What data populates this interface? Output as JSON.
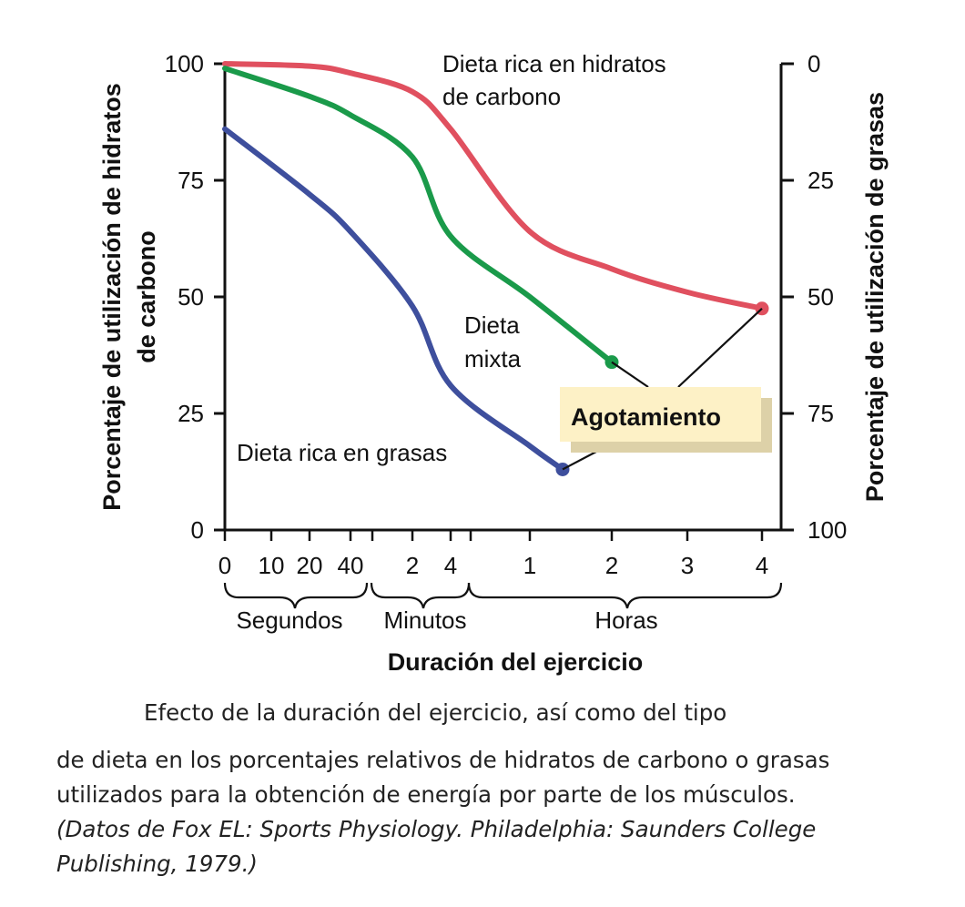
{
  "chart_data": {
    "type": "line",
    "xlabel": "Duración del ejercicio",
    "ylabel_left": "Porcentaje de utilización de hidratos de carbono",
    "ylabel_right": "Porcentaje de utilización de grasas",
    "ylim_left": [
      0,
      100
    ],
    "ylim_right": [
      100,
      0
    ],
    "yticks_left": [
      "100",
      "75",
      "50",
      "25",
      "0"
    ],
    "yticks_right": [
      "0",
      "25",
      "50",
      "75",
      "100"
    ],
    "xticks": [
      "0",
      "10",
      "20",
      "40",
      "2",
      "4",
      "1",
      "2",
      "3",
      "4"
    ],
    "x_groups": [
      "Segundos",
      "Minutos",
      "Horas"
    ],
    "series": [
      {
        "name": "Dieta rica en hidratos de carbono",
        "label_lines": [
          "Dieta rica en hidratos",
          "de carbono"
        ],
        "color": "#e0505f",
        "x": [
          "0 s",
          "20 s",
          "40 s",
          "2 min",
          "4 min",
          "1 h",
          "2 h",
          "3 h",
          "4 h"
        ],
        "values": [
          100,
          99.5,
          98,
          94,
          86,
          64,
          56,
          51,
          47.5
        ],
        "end_marker": true
      },
      {
        "name": "Dieta mixta",
        "label_lines": [
          "Dieta",
          "mixta"
        ],
        "color": "#1a9a4a",
        "x": [
          "0 s",
          "20 s",
          "40 s",
          "2 min",
          "4 min",
          "1 h",
          "2 h"
        ],
        "values": [
          99,
          93,
          89,
          80,
          63,
          50,
          36
        ],
        "end_marker": true
      },
      {
        "name": "Dieta rica en grasas",
        "label_lines": [
          "Dieta rica en grasas"
        ],
        "color": "#3e4f9d",
        "x": [
          "0 s",
          "20 s",
          "40 s",
          "2 min",
          "4 min",
          "1 h",
          "1.5 h"
        ],
        "values": [
          86,
          72,
          64,
          48,
          31,
          18,
          13
        ],
        "end_marker": true
      }
    ],
    "annotation": "Agotamiento"
  },
  "caption": {
    "line1": "Efecto de la duración del ejercicio, así como del tipo",
    "line2": "de dieta en los porcentajes relativos de hidratos de carbono o grasas",
    "line3": "utilizados para la obtención de energía por parte de los músculos.",
    "line4": "(Datos de Fox EL: Sports Physiology. Philadelphia: Saunders College",
    "line5": "Publishing, 1979.)"
  }
}
